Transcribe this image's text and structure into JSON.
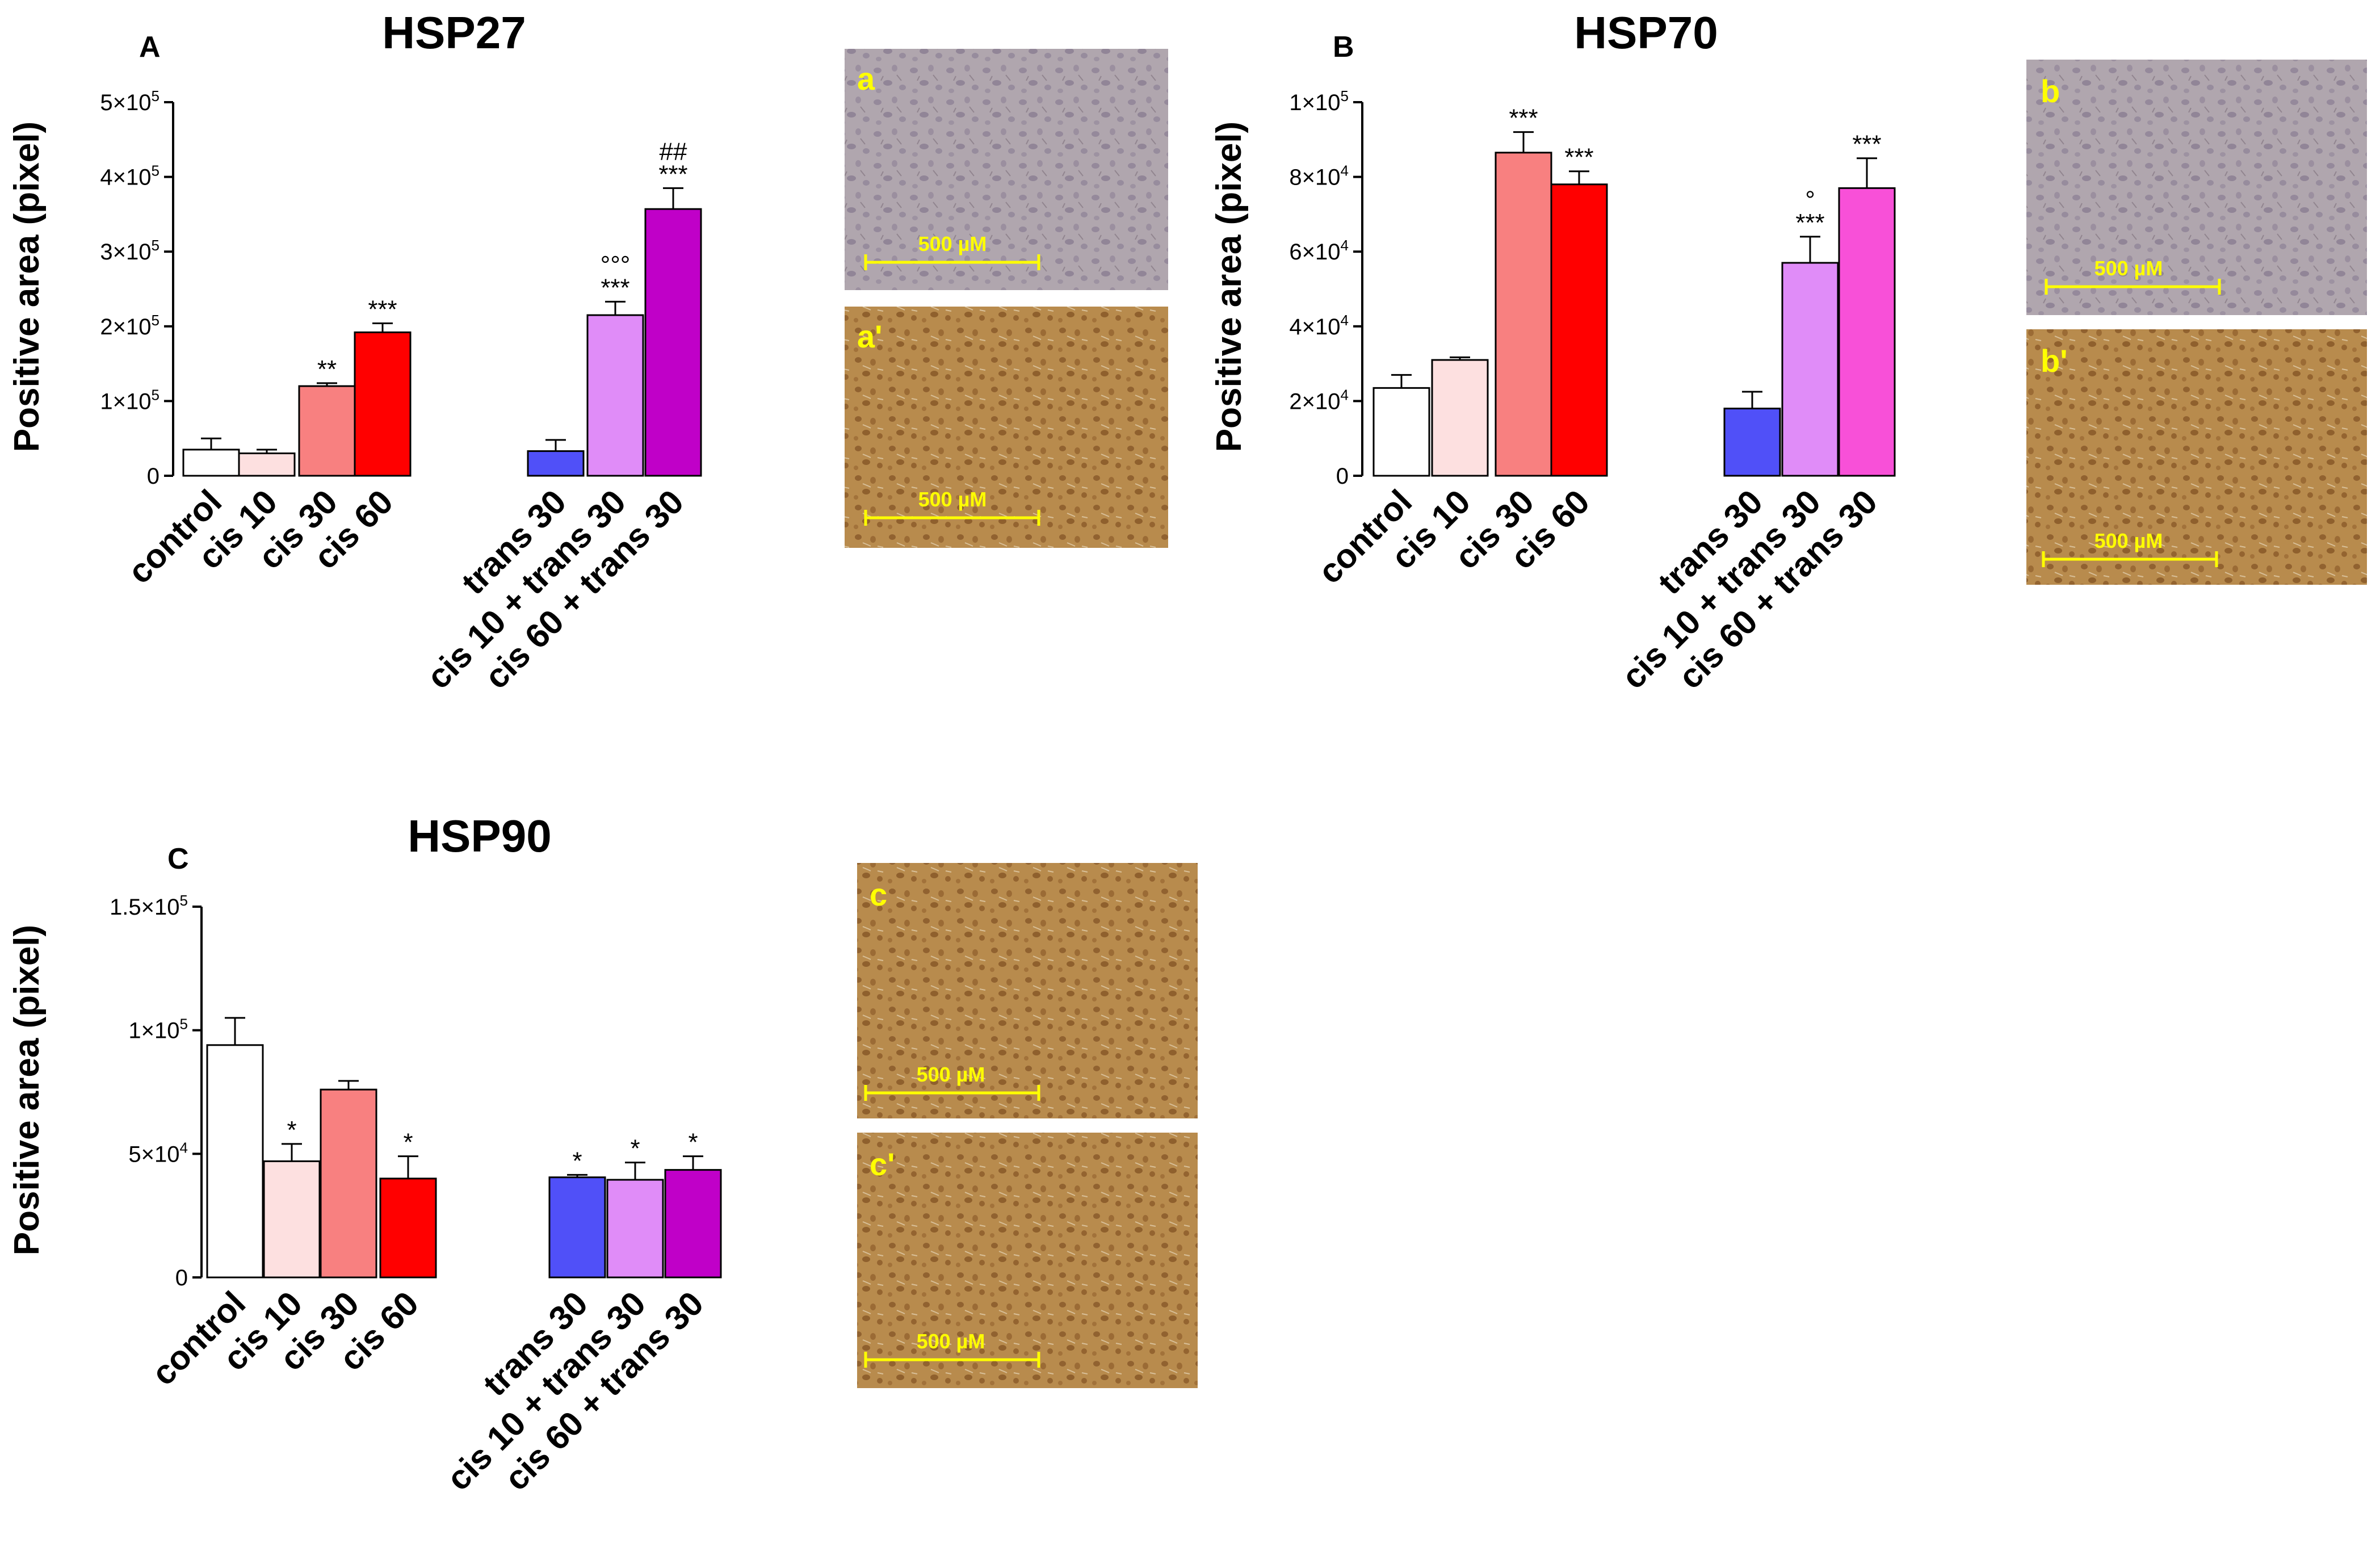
{
  "panels": [
    {
      "panel_label": "A",
      "photo_labels": [
        "a",
        "a'"
      ],
      "scale_bar_label": "500 µM",
      "chart_data": {
        "type": "bar",
        "title": "HSP27",
        "ylabel": "Positive area (pixel)",
        "ylim": [
          0,
          500000
        ],
        "yticks": [
          {
            "value": 0,
            "base": "0",
            "exp": ""
          },
          {
            "value": 100000,
            "base": "1×10",
            "exp": "5"
          },
          {
            "value": 200000,
            "base": "2×10",
            "exp": "5"
          },
          {
            "value": 300000,
            "base": "3×10",
            "exp": "5"
          },
          {
            "value": 400000,
            "base": "4×10",
            "exp": "5"
          },
          {
            "value": 500000,
            "base": "5×10",
            "exp": "5"
          }
        ],
        "groups": [
          {
            "categories": [
              "control",
              "cis 10",
              "cis 30",
              "cis 60"
            ],
            "values": [
              35000,
              30000,
              120000,
              192000
            ],
            "errors": [
              15000,
              5000,
              4000,
              12000
            ],
            "colors": [
              "#ffffff",
              "#fde0e0",
              "#f88080",
              "#ff0000"
            ],
            "annotations": [
              [],
              [],
              [
                "**"
              ],
              [
                "***"
              ]
            ]
          },
          {
            "categories": [
              "trans 30",
              "cis 10 + trans 30",
              "cis 60 + trans 30"
            ],
            "values": [
              33000,
              215000,
              357000
            ],
            "errors": [
              15000,
              18000,
              28000
            ],
            "colors": [
              "#5050f8",
              "#e08cf8",
              "#c000c8"
            ],
            "annotations": [
              [],
              [
                "°°°",
                "***"
              ],
              [
                "##",
                "***"
              ]
            ]
          }
        ]
      }
    },
    {
      "panel_label": "B",
      "photo_labels": [
        "b",
        "b'"
      ],
      "scale_bar_label": "500 µM",
      "chart_data": {
        "type": "bar",
        "title": "HSP70",
        "ylabel": "Positive area (pixel)",
        "ylim": [
          0,
          100000
        ],
        "yticks": [
          {
            "value": 0,
            "base": "0",
            "exp": ""
          },
          {
            "value": 20000,
            "base": "2×10",
            "exp": "4"
          },
          {
            "value": 40000,
            "base": "4×10",
            "exp": "4"
          },
          {
            "value": 60000,
            "base": "6×10",
            "exp": "4"
          },
          {
            "value": 80000,
            "base": "8×10",
            "exp": "4"
          },
          {
            "value": 100000,
            "base": "1×10",
            "exp": "5"
          }
        ],
        "groups": [
          {
            "categories": [
              "control",
              "cis 10",
              "cis 30",
              "cis 60"
            ],
            "values": [
              23500,
              31000,
              86500,
              78000
            ],
            "errors": [
              3500,
              700,
              5500,
              3500
            ],
            "colors": [
              "#ffffff",
              "#fde0e0",
              "#f88080",
              "#ff0000"
            ],
            "annotations": [
              [],
              [],
              [
                "***"
              ],
              [
                "***"
              ]
            ]
          },
          {
            "categories": [
              "trans 30",
              "cis 10 + trans 30",
              "cis 60 + trans 30"
            ],
            "values": [
              18000,
              57000,
              77000
            ],
            "errors": [
              4500,
              7000,
              8000
            ],
            "colors": [
              "#5050f8",
              "#e08cf8",
              "#f850d8"
            ],
            "annotations": [
              [],
              [
                "°",
                "***"
              ],
              [
                "***"
              ]
            ]
          }
        ]
      }
    },
    {
      "panel_label": "C",
      "photo_labels": [
        "c",
        "c'"
      ],
      "scale_bar_label": "500 µM",
      "chart_data": {
        "type": "bar",
        "title": "HSP90",
        "ylabel": "Positive area (pixel)",
        "ylim": [
          0,
          150000
        ],
        "yticks": [
          {
            "value": 0,
            "base": "0",
            "exp": ""
          },
          {
            "value": 50000,
            "base": "5×10",
            "exp": "4"
          },
          {
            "value": 100000,
            "base": "1×10",
            "exp": "5"
          },
          {
            "value": 150000,
            "base": "1.5×10",
            "exp": "5"
          }
        ],
        "groups": [
          {
            "categories": [
              "control",
              "cis 10",
              "cis 30",
              "cis 60"
            ],
            "values": [
              94000,
              47000,
              76000,
              40000
            ],
            "errors": [
              11000,
              7000,
              3500,
              9000
            ],
            "colors": [
              "#ffffff",
              "#fde0e0",
              "#f88080",
              "#ff0000"
            ],
            "annotations": [
              [],
              [
                "*"
              ],
              [],
              [
                "*"
              ]
            ]
          },
          {
            "categories": [
              "trans 30",
              "cis 10 + trans 30",
              "cis 60 + trans 30"
            ],
            "values": [
              40500,
              39500,
              43500
            ],
            "errors": [
              1000,
              7000,
              5500
            ],
            "colors": [
              "#5050f8",
              "#e08cf8",
              "#c000c8"
            ],
            "annotations": [
              [
                "*"
              ],
              [
                "*"
              ],
              [
                "*"
              ]
            ]
          }
        ]
      }
    }
  ],
  "colors": {
    "bar_stroke": "#000000",
    "photo_label": "#ffff00",
    "scale_bar": "#ffff00",
    "photo_purple_bg": "#aea3ac",
    "photo_purple_cell": "#8a7e92",
    "photo_brown_bg": "#b98c4c",
    "photo_brown_cell": "#8a5a2a"
  }
}
